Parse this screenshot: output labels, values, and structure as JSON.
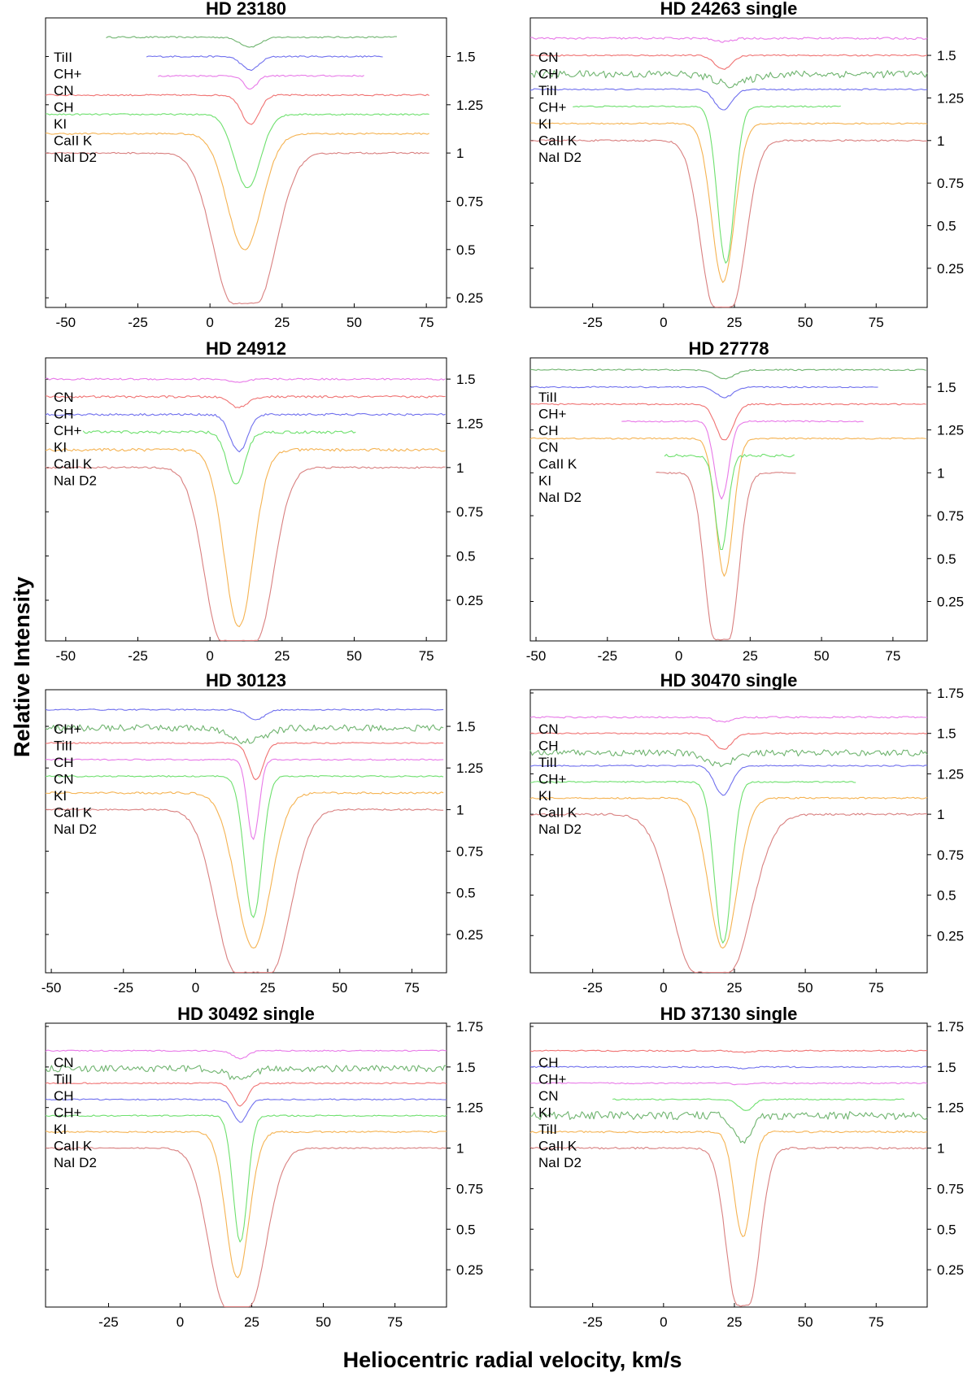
{
  "x_axis_title": "Heliocentric radial velocity, km/s",
  "y_axis_title": "Relative Intensity",
  "colors": {
    "NaI D2": "#d98080",
    "CaII K": "#f5b352",
    "KI": "#6ee06e",
    "CH": "#f07373",
    "CN": "#e879e8",
    "CH+": "#7070ee",
    "TiII": "#6fb46f"
  },
  "chart_data": [
    {
      "type": "line",
      "title": "HD 23180",
      "xlim": [
        -57,
        82
      ],
      "ylim": [
        0.2,
        1.7
      ],
      "xticks": [
        -50,
        -25,
        0,
        25,
        50,
        75
      ],
      "yticks": [
        0.25,
        0.5,
        0.75,
        1,
        1.25,
        1.5
      ],
      "ytick_labels": [
        "0.25",
        "0.5",
        "0.75",
        "1",
        "1.25",
        "1.5"
      ],
      "series_labels": [
        "TiII",
        "CH+",
        "CN",
        "CH",
        "KI",
        "CaII K",
        "NaI D2"
      ],
      "series": [
        {
          "name": "TiII",
          "x": [
            -36,
            14,
            65
          ],
          "continuum": 1.6,
          "depth": 0.05,
          "width": 3.5,
          "noise": 0.004
        },
        {
          "name": "CH+",
          "x": [
            -22,
            14,
            60
          ],
          "continuum": 1.5,
          "depth": 0.07,
          "width": 3,
          "noise": 0.004
        },
        {
          "name": "CN",
          "x": [
            -18,
            14,
            54
          ],
          "continuum": 1.4,
          "depth": 0.07,
          "width": 2.2,
          "noise": 0.004
        },
        {
          "name": "CH",
          "x": [
            -57,
            14,
            76
          ],
          "continuum": 1.3,
          "depth": 0.15,
          "width": 3,
          "noise": 0.004
        },
        {
          "name": "KI",
          "x": [
            -57,
            13,
            76
          ],
          "continuum": 1.2,
          "depth": 0.38,
          "width": 4.5,
          "noise": 0.004
        },
        {
          "name": "CaII K",
          "x": [
            -57,
            12,
            76
          ],
          "continuum": 1.1,
          "depth": 0.6,
          "width": 6,
          "noise": 0.004
        },
        {
          "name": "NaI D2",
          "x": [
            -57,
            12,
            76
          ],
          "continuum": 1.0,
          "depth": 0.78,
          "width": 7,
          "flat": 4,
          "noise": 0.004
        }
      ]
    },
    {
      "type": "line",
      "title": "HD 24263 single",
      "xlim": [
        -47,
        93
      ],
      "ylim": [
        0.02,
        1.72
      ],
      "xticks": [
        -25,
        0,
        25,
        50,
        75
      ],
      "yticks": [
        0.25,
        0.5,
        0.75,
        1,
        1.25,
        1.5
      ],
      "ytick_labels": [
        "0.25",
        "0.5",
        "0.75",
        "1",
        "1.25",
        "1.5"
      ],
      "series_labels": [
        "CN",
        "CH",
        "TiII",
        "CH+",
        "KI",
        "CaII K",
        "NaI D2"
      ],
      "series": [
        {
          "name": "CN",
          "x": [
            -47,
            21,
            93
          ],
          "continuum": 1.6,
          "depth": 0.02,
          "width": 3,
          "noise": 0.006
        },
        {
          "name": "CH",
          "x": [
            -47,
            21,
            93
          ],
          "continuum": 1.5,
          "depth": 0.08,
          "width": 3,
          "noise": 0.004
        },
        {
          "name": "TiII",
          "x": [
            -47,
            24,
            93
          ],
          "continuum": 1.39,
          "depth": 0.06,
          "width": 6,
          "noise": 0.022
        },
        {
          "name": "CH+",
          "x": [
            -47,
            21,
            93
          ],
          "continuum": 1.3,
          "depth": 0.12,
          "width": 3,
          "noise": 0.004
        },
        {
          "name": "KI",
          "x": [
            -32,
            22,
            63
          ],
          "continuum": 1.2,
          "depth": 0.92,
          "width": 3,
          "noise": 0.004
        },
        {
          "name": "CaII K",
          "x": [
            -47,
            21,
            93
          ],
          "continuum": 1.1,
          "depth": 0.93,
          "width": 4,
          "noise": 0.004
        },
        {
          "name": "NaI D2",
          "x": [
            -47,
            21,
            93
          ],
          "continuum": 1.0,
          "depth": 0.98,
          "width": 5,
          "flat": 3,
          "noise": 0.005
        }
      ]
    },
    {
      "type": "line",
      "title": "HD 24912",
      "xlim": [
        -57,
        82
      ],
      "ylim": [
        0.02,
        1.62
      ],
      "xticks": [
        -50,
        -25,
        0,
        25,
        50,
        75
      ],
      "yticks": [
        0.25,
        0.5,
        0.75,
        1,
        1.25,
        1.5
      ],
      "ytick_labels": [
        "0.25",
        "0.5",
        "0.75",
        "1",
        "1.25",
        "1.5"
      ],
      "series_labels": [
        "CN",
        "CH",
        "CH+",
        "KI",
        "CaII K",
        "NaI D2"
      ],
      "series": [
        {
          "name": "CN",
          "x": [
            -57,
            10,
            82
          ],
          "continuum": 1.5,
          "depth": 0.02,
          "width": 3,
          "noise": 0.005
        },
        {
          "name": "CH",
          "x": [
            -57,
            10,
            82
          ],
          "continuum": 1.4,
          "depth": 0.06,
          "width": 3,
          "noise": 0.006
        },
        {
          "name": "CH+",
          "x": [
            -57,
            10,
            82
          ],
          "continuum": 1.3,
          "depth": 0.21,
          "width": 3,
          "noise": 0.006
        },
        {
          "name": "KI",
          "x": [
            -44,
            9,
            51
          ],
          "continuum": 1.2,
          "depth": 0.3,
          "width": 3,
          "noise": 0.008
        },
        {
          "name": "CaII K",
          "x": [
            -57,
            10,
            82
          ],
          "continuum": 1.1,
          "depth": 1.0,
          "width": 5,
          "noise": 0.008
        },
        {
          "name": "NaI D2",
          "x": [
            -57,
            10,
            82
          ],
          "continuum": 1.0,
          "depth": 0.98,
          "width": 6,
          "flat": 6,
          "noise": 0.005
        }
      ]
    },
    {
      "type": "line",
      "title": "HD 27778",
      "xlim": [
        -52,
        87
      ],
      "ylim": [
        0.02,
        1.67
      ],
      "xticks": [
        -50,
        -25,
        0,
        25,
        50,
        75
      ],
      "yticks": [
        0.25,
        0.5,
        0.75,
        1,
        1.25,
        1.5
      ],
      "ytick_labels": [
        "0.25",
        "0.5",
        "0.75",
        "1",
        "1.25",
        "1.5"
      ],
      "series_labels": [
        "TiII",
        "CH+",
        "CH",
        "CN",
        "CaII K",
        "KI",
        "NaI D2"
      ],
      "series": [
        {
          "name": "TiII",
          "x": [
            -52,
            16,
            87
          ],
          "continuum": 1.6,
          "depth": 0.05,
          "width": 3.5,
          "noise": 0.004
        },
        {
          "name": "CH+",
          "x": [
            -52,
            16,
            70
          ],
          "continuum": 1.5,
          "depth": 0.06,
          "width": 3,
          "noise": 0.004
        },
        {
          "name": "CH",
          "x": [
            -52,
            16,
            87
          ],
          "continuum": 1.4,
          "depth": 0.21,
          "width": 3,
          "noise": 0.004
        },
        {
          "name": "CN",
          "x": [
            -20,
            15,
            65
          ],
          "continuum": 1.3,
          "depth": 0.45,
          "width": 2.5,
          "noise": 0.004
        },
        {
          "name": "CaII K",
          "x": [
            -52,
            16,
            87
          ],
          "continuum": 1.2,
          "depth": 0.8,
          "width": 3,
          "noise": 0.004
        },
        {
          "name": "KI",
          "x": [
            -5,
            15,
            41
          ],
          "continuum": 1.1,
          "depth": 0.55,
          "width": 2.2,
          "noise": 0.008
        },
        {
          "name": "NaI D2",
          "x": [
            -8,
            15,
            41
          ],
          "continuum": 1.0,
          "depth": 0.97,
          "width": 3.5,
          "flat": 2.5,
          "noise": 0.005
        }
      ]
    },
    {
      "type": "line",
      "title": "HD 30123",
      "xlim": [
        -52,
        87
      ],
      "ylim": [
        0.02,
        1.72
      ],
      "xticks": [
        -50,
        -25,
        0,
        25,
        50,
        75
      ],
      "yticks": [
        0.25,
        0.5,
        0.75,
        1,
        1.25,
        1.5
      ],
      "ytick_labels": [
        "0.25",
        "0.5",
        "0.75",
        "1",
        "1.25",
        "1.5"
      ],
      "series_labels": [
        "CH+",
        "TiII",
        "CH",
        "CN",
        "KI",
        "CaII K",
        "NaI D2"
      ],
      "series": [
        {
          "name": "CH+",
          "x": [
            -52,
            21,
            86
          ],
          "continuum": 1.6,
          "depth": 0.06,
          "width": 3,
          "noise": 0.004
        },
        {
          "name": "TiII",
          "x": [
            -52,
            18,
            86
          ],
          "continuum": 1.49,
          "depth": 0.08,
          "width": 6,
          "noise": 0.02
        },
        {
          "name": "CH",
          "x": [
            -52,
            21,
            86
          ],
          "continuum": 1.4,
          "depth": 0.22,
          "width": 2.5,
          "noise": 0.004
        },
        {
          "name": "CN",
          "x": [
            -52,
            20,
            86
          ],
          "continuum": 1.3,
          "depth": 0.48,
          "width": 2,
          "noise": 0.004
        },
        {
          "name": "KI",
          "x": [
            -52,
            20,
            86
          ],
          "continuum": 1.2,
          "depth": 0.85,
          "width": 3,
          "noise": 0.004
        },
        {
          "name": "CaII K",
          "x": [
            -52,
            20,
            86
          ],
          "continuum": 1.1,
          "depth": 0.93,
          "width": 6,
          "noise": 0.006
        },
        {
          "name": "NaI D2",
          "x": [
            -52,
            20,
            86
          ],
          "continuum": 1.0,
          "depth": 0.98,
          "width": 7,
          "flat": 6,
          "noise": 0.005
        }
      ]
    },
    {
      "type": "line",
      "title": "HD 30470 single",
      "xlim": [
        -47,
        93
      ],
      "ylim": [
        0.02,
        1.77
      ],
      "xticks": [
        -25,
        0,
        25,
        50,
        75
      ],
      "yticks": [
        0.25,
        0.5,
        0.75,
        1,
        1.25,
        1.5,
        1.75
      ],
      "ytick_labels": [
        "0.25",
        "0.5",
        "0.75",
        "1",
        "1.25",
        "1.5",
        "1.75"
      ],
      "series_labels": [
        "CN",
        "CH",
        "TiII",
        "CH+",
        "KI",
        "CaII K",
        "NaI D2"
      ],
      "series": [
        {
          "name": "CN",
          "x": [
            -47,
            21,
            93
          ],
          "continuum": 1.6,
          "depth": 0.03,
          "width": 3,
          "noise": 0.005
        },
        {
          "name": "CH",
          "x": [
            -47,
            21,
            93
          ],
          "continuum": 1.5,
          "depth": 0.1,
          "width": 3,
          "noise": 0.004
        },
        {
          "name": "TiII",
          "x": [
            -47,
            20,
            93
          ],
          "continuum": 1.38,
          "depth": 0.07,
          "width": 5,
          "noise": 0.02
        },
        {
          "name": "CH+",
          "x": [
            -47,
            21,
            93
          ],
          "continuum": 1.3,
          "depth": 0.18,
          "width": 3,
          "noise": 0.004
        },
        {
          "name": "KI",
          "x": [
            -47,
            21,
            68
          ],
          "continuum": 1.2,
          "depth": 1.0,
          "width": 3,
          "noise": 0.004
        },
        {
          "name": "CaII K",
          "x": [
            -47,
            21,
            93
          ],
          "continuum": 1.1,
          "depth": 0.93,
          "width": 5,
          "noise": 0.005
        },
        {
          "name": "NaI D2",
          "x": [
            -47,
            17,
            93
          ],
          "continuum": 1.0,
          "depth": 0.98,
          "width": 8,
          "flat": 6,
          "noise": 0.006
        }
      ]
    },
    {
      "type": "line",
      "title": "HD 30492 single",
      "xlim": [
        -47,
        93
      ],
      "ylim": [
        0.02,
        1.77
      ],
      "xticks": [
        -25,
        0,
        25,
        50,
        75
      ],
      "yticks": [
        0.25,
        0.5,
        0.75,
        1,
        1.25,
        1.5,
        1.75
      ],
      "ytick_labels": [
        "0.25",
        "0.5",
        "0.75",
        "1",
        "1.25",
        "1.5",
        "1.75"
      ],
      "series_labels": [
        "CN",
        "TiII",
        "CH",
        "CH+",
        "KI",
        "CaII K",
        "NaI D2"
      ],
      "series": [
        {
          "name": "CN",
          "x": [
            -47,
            21,
            93
          ],
          "continuum": 1.6,
          "depth": 0.05,
          "width": 2.5,
          "noise": 0.004
        },
        {
          "name": "TiII",
          "x": [
            -47,
            21,
            93
          ],
          "continuum": 1.49,
          "depth": 0.07,
          "width": 4,
          "noise": 0.02
        },
        {
          "name": "CH",
          "x": [
            -47,
            21,
            93
          ],
          "continuum": 1.4,
          "depth": 0.14,
          "width": 2.5,
          "noise": 0.004
        },
        {
          "name": "CH+",
          "x": [
            -47,
            21,
            93
          ],
          "continuum": 1.3,
          "depth": 0.14,
          "width": 2.5,
          "noise": 0.004
        },
        {
          "name": "KI",
          "x": [
            -47,
            21,
            93
          ],
          "continuum": 1.2,
          "depth": 0.78,
          "width": 2.5,
          "noise": 0.004
        },
        {
          "name": "CaII K",
          "x": [
            -47,
            20,
            93
          ],
          "continuum": 1.1,
          "depth": 0.9,
          "width": 4,
          "noise": 0.005
        },
        {
          "name": "NaI D2",
          "x": [
            -47,
            20,
            93
          ],
          "continuum": 1.0,
          "depth": 0.98,
          "width": 6,
          "flat": 4,
          "noise": 0.004
        }
      ]
    },
    {
      "type": "line",
      "title": "HD 37130 single",
      "xlim": [
        -47,
        93
      ],
      "ylim": [
        0.02,
        1.77
      ],
      "xticks": [
        -25,
        0,
        25,
        50,
        75
      ],
      "yticks": [
        0.25,
        0.5,
        0.75,
        1,
        1.25,
        1.5,
        1.75
      ],
      "ytick_labels": [
        "0.25",
        "0.5",
        "0.75",
        "1",
        "1.25",
        "1.5",
        "1.75"
      ],
      "series_labels": [
        "CH",
        "CH+",
        "CN",
        "KI",
        "TiII",
        "CaII K",
        "NaI D2"
      ],
      "series": [
        {
          "name": "CH",
          "x": [
            -47,
            28,
            93
          ],
          "continuum": 1.6,
          "depth": 0.01,
          "width": 3,
          "noise": 0.004
        },
        {
          "name": "CH+",
          "x": [
            -47,
            28,
            93
          ],
          "continuum": 1.5,
          "depth": 0.01,
          "width": 3,
          "noise": 0.004
        },
        {
          "name": "CN",
          "x": [
            -47,
            28,
            93
          ],
          "continuum": 1.4,
          "depth": 0.01,
          "width": 3,
          "noise": 0.004
        },
        {
          "name": "KI",
          "x": [
            -18,
            29,
            85
          ],
          "continuum": 1.3,
          "depth": 0.07,
          "width": 2.5,
          "noise": 0.004
        },
        {
          "name": "TiII",
          "x": [
            -47,
            28,
            93
          ],
          "continuum": 1.2,
          "depth": 0.15,
          "width": 3,
          "noise": 0.025
        },
        {
          "name": "CaII K",
          "x": [
            -47,
            28,
            93
          ],
          "continuum": 1.1,
          "depth": 0.65,
          "width": 3,
          "noise": 0.006
        },
        {
          "name": "NaI D2",
          "x": [
            -47,
            28,
            93
          ],
          "continuum": 1.0,
          "depth": 0.97,
          "width": 4,
          "flat": 2,
          "noise": 0.006
        }
      ]
    }
  ]
}
